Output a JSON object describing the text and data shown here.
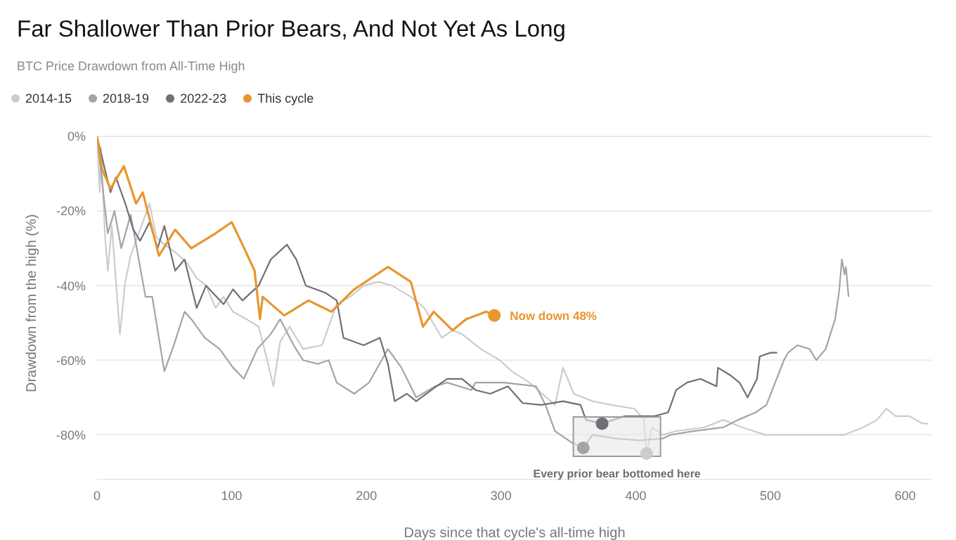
{
  "chart_data": {
    "type": "line",
    "title": "Far Shallower Than Prior Bears, And Not Yet As Long",
    "subtitle": "BTC Price Drawdown from All-Time High",
    "xlabel": "Days since that cycle's all-time high",
    "ylabel": "Drawdown from the high (%)",
    "legend": "top left",
    "grid": "y",
    "line_style": "solid",
    "xlim": [
      0,
      620
    ],
    "xticks": [
      0,
      100,
      200,
      300,
      400,
      500,
      600
    ],
    "ylim": [
      -92,
      0
    ],
    "yticks": [
      {
        "value": 0,
        "label": "0%"
      },
      {
        "value": -20,
        "label": "-20%"
      },
      {
        "value": -40,
        "label": "-40%"
      },
      {
        "value": -60,
        "label": "-60%"
      },
      {
        "value": -80,
        "label": "-80%"
      }
    ],
    "annotations": [
      {
        "text": "Now down 48%",
        "x": 295,
        "y": -48
      },
      {
        "text": "Every prior bear bottomed here",
        "x": 386,
        "y": -80.5
      }
    ],
    "series": [
      {
        "name": "2014-15",
        "color": "#cbccd0",
        "x": [
          0,
          2,
          3,
          6,
          8,
          11,
          17,
          21,
          25,
          32,
          39,
          44,
          50,
          58,
          67,
          74,
          81,
          88,
          94,
          101,
          111,
          120,
          125,
          131,
          136,
          143,
          153,
          167,
          174,
          178,
          188,
          198,
          209,
          219,
          233,
          243,
          256,
          264,
          271,
          285,
          299,
          308,
          321,
          340,
          346,
          354,
          368,
          382,
          399,
          406,
          408,
          412,
          420,
          430,
          451,
          465,
          479,
          496,
          513,
          534,
          555,
          569,
          579,
          586,
          593,
          603,
          613,
          617
        ],
        "values": [
          0,
          -15,
          -3,
          -27,
          -36,
          -24,
          -53,
          -39,
          -32,
          -25,
          -18,
          -27,
          -29,
          -31,
          -34,
          -38,
          -40,
          -46,
          -43,
          -47,
          -49,
          -51,
          -58,
          -67,
          -55,
          -51,
          -57,
          -56,
          -49,
          -45,
          -43,
          -40,
          -39,
          -40,
          -43,
          -46,
          -54,
          -52,
          -53,
          -57,
          -60,
          -63,
          -66,
          -72,
          -62,
          -69,
          -71,
          -72,
          -73,
          -76,
          -85,
          -78,
          -80,
          -79,
          -78,
          -76,
          -78,
          -80,
          -80,
          -80,
          -80,
          -78,
          -76,
          -73,
          -75,
          -75,
          -77,
          -77
        ]
      },
      {
        "name": "2018-19",
        "color": "#a3a4aa",
        "x": [
          0,
          8,
          13,
          18,
          25,
          32,
          36,
          41,
          50,
          57,
          65,
          70,
          80,
          91,
          101,
          109,
          119,
          129,
          136,
          146,
          153,
          164,
          172,
          178,
          191,
          202,
          216,
          226,
          237,
          251,
          260,
          278,
          281,
          302,
          326,
          333,
          340,
          352,
          361,
          368,
          385,
          403,
          420,
          426,
          443,
          465,
          476,
          489,
          497,
          510,
          513,
          520,
          529,
          534,
          541,
          548,
          551,
          553,
          555,
          556,
          558
        ],
        "values": [
          0,
          -26,
          -20,
          -30,
          -21,
          -35,
          -43,
          -43,
          -63,
          -56,
          -47,
          -49,
          -54,
          -57,
          -62,
          -65,
          -57,
          -53,
          -49,
          -56,
          -60,
          -61,
          -60,
          -66,
          -69,
          -66,
          -57,
          -62,
          -70,
          -67,
          -66,
          -68,
          -66,
          -66,
          -67,
          -72,
          -79,
          -82,
          -83.5,
          -80,
          -81,
          -81.5,
          -81,
          -80,
          -79,
          -78,
          -76,
          -74,
          -72,
          -60,
          -58,
          -56,
          -57,
          -60,
          -57,
          -49,
          -41.5,
          -33,
          -37,
          -35,
          -43
        ]
      },
      {
        "name": "2022-23",
        "color": "#6e6f78",
        "x": [
          0,
          10,
          14,
          21,
          27,
          32,
          39,
          45,
          50,
          58,
          65,
          74,
          81,
          94,
          101,
          108,
          120,
          129,
          141,
          148,
          155,
          170,
          178,
          183,
          198,
          210,
          216,
          221,
          230,
          237,
          252,
          260,
          271,
          281,
          292,
          305,
          316,
          330,
          346,
          359,
          363,
          375,
          392,
          414,
          424,
          430,
          438,
          448,
          460,
          461,
          470,
          477,
          483,
          490,
          492,
          500,
          505
        ],
        "values": [
          0,
          -15,
          -11,
          -18,
          -25,
          -28,
          -23,
          -30,
          -24,
          -36,
          -33,
          -46,
          -40,
          -45,
          -41,
          -44,
          -40,
          -33,
          -29,
          -33,
          -40,
          -42,
          -44,
          -54,
          -56,
          -54,
          -61,
          -71,
          -69,
          -71,
          -67,
          -65,
          -65,
          -68,
          -69,
          -67,
          -71.5,
          -72,
          -71,
          -72,
          -76,
          -77,
          -75,
          -75,
          -74,
          -68,
          -66,
          -65,
          -67,
          -62,
          -64,
          -66,
          -70,
          -65,
          -59,
          -58,
          -58
        ]
      },
      {
        "name": "This cycle",
        "color": "#e8962f",
        "x": [
          0,
          4,
          10,
          20,
          29,
          34,
          46,
          58,
          70,
          88,
          100,
          108,
          117,
          121,
          123,
          139,
          157,
          174,
          191,
          216,
          233,
          242,
          250,
          264,
          274,
          289,
          295
        ],
        "values": [
          0,
          -9,
          -14,
          -8,
          -18,
          -15,
          -32,
          -25,
          -30,
          -26,
          -23,
          -29,
          -36,
          -49,
          -43,
          -48,
          -44,
          -47,
          -41,
          -35,
          -39,
          -51,
          -47,
          -52,
          -49,
          -47,
          -48
        ]
      },
      {
        "type": "scatter",
        "x": [
          361,
          375,
          408,
          295
        ],
        "values": [
          -83.5,
          -77,
          -85,
          -48
        ],
        "colors": [
          "#a3a4aa",
          "#6e6f78",
          "#cbccd0",
          "#e8962f"
        ]
      }
    ]
  }
}
